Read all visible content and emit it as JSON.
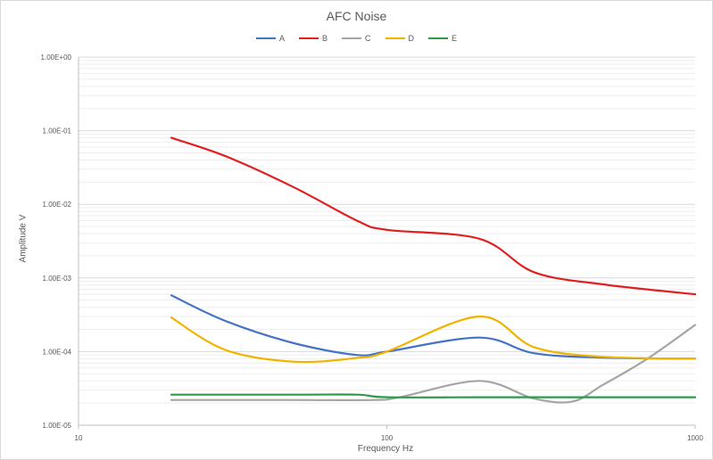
{
  "chart_data": {
    "type": "line",
    "title": "AFC Noise",
    "xlabel": "Frequency Hz",
    "ylabel": "Amplitude V",
    "x_scale": "log",
    "y_scale": "log",
    "xlim": [
      10,
      1000
    ],
    "ylim": [
      1e-05,
      1
    ],
    "x_tick_labels": [
      "10",
      "100",
      "1000"
    ],
    "y_tick_labels": [
      "1.00E+00",
      "1.00E-01",
      "1.00E-02",
      "1.00E-03",
      "1.00E-04",
      "1.00E-05"
    ],
    "grid": true,
    "legend_position": "top",
    "series": [
      {
        "name": "A",
        "color": "#4472c4",
        "x": [
          20,
          30,
          50,
          80,
          100,
          200,
          300,
          500,
          1000
        ],
        "y": [
          0.00058,
          0.00026,
          0.00013,
          9e-05,
          0.0001,
          0.000155,
          9.5e-05,
          8.3e-05,
          8e-05
        ]
      },
      {
        "name": "B",
        "color": "#e02020",
        "x": [
          20,
          30,
          50,
          80,
          100,
          200,
          300,
          500,
          1000
        ],
        "y": [
          0.08,
          0.045,
          0.017,
          0.006,
          0.0045,
          0.0034,
          0.0012,
          0.00082,
          0.0006
        ]
      },
      {
        "name": "C",
        "color": "#a5a5a5",
        "x": [
          20,
          50,
          90,
          110,
          200,
          300,
          400,
          500,
          700,
          1000
        ],
        "y": [
          2.2e-05,
          2.2e-05,
          2.2e-05,
          2.4e-05,
          4e-05,
          2.3e-05,
          2.1e-05,
          3.5e-05,
          8e-05,
          0.00023
        ]
      },
      {
        "name": "D",
        "color": "#f0b400",
        "x": [
          20,
          30,
          50,
          80,
          100,
          200,
          300,
          500,
          1000
        ],
        "y": [
          0.00029,
          0.000105,
          7.3e-05,
          8.2e-05,
          0.0001,
          0.0003,
          0.000115,
          8.5e-05,
          8e-05
        ]
      },
      {
        "name": "E",
        "color": "#2e9a48",
        "x": [
          20,
          50,
          80,
          100,
          200,
          500,
          1000
        ],
        "y": [
          2.6e-05,
          2.6e-05,
          2.6e-05,
          2.4e-05,
          2.4e-05,
          2.4e-05,
          2.4e-05
        ]
      }
    ]
  }
}
